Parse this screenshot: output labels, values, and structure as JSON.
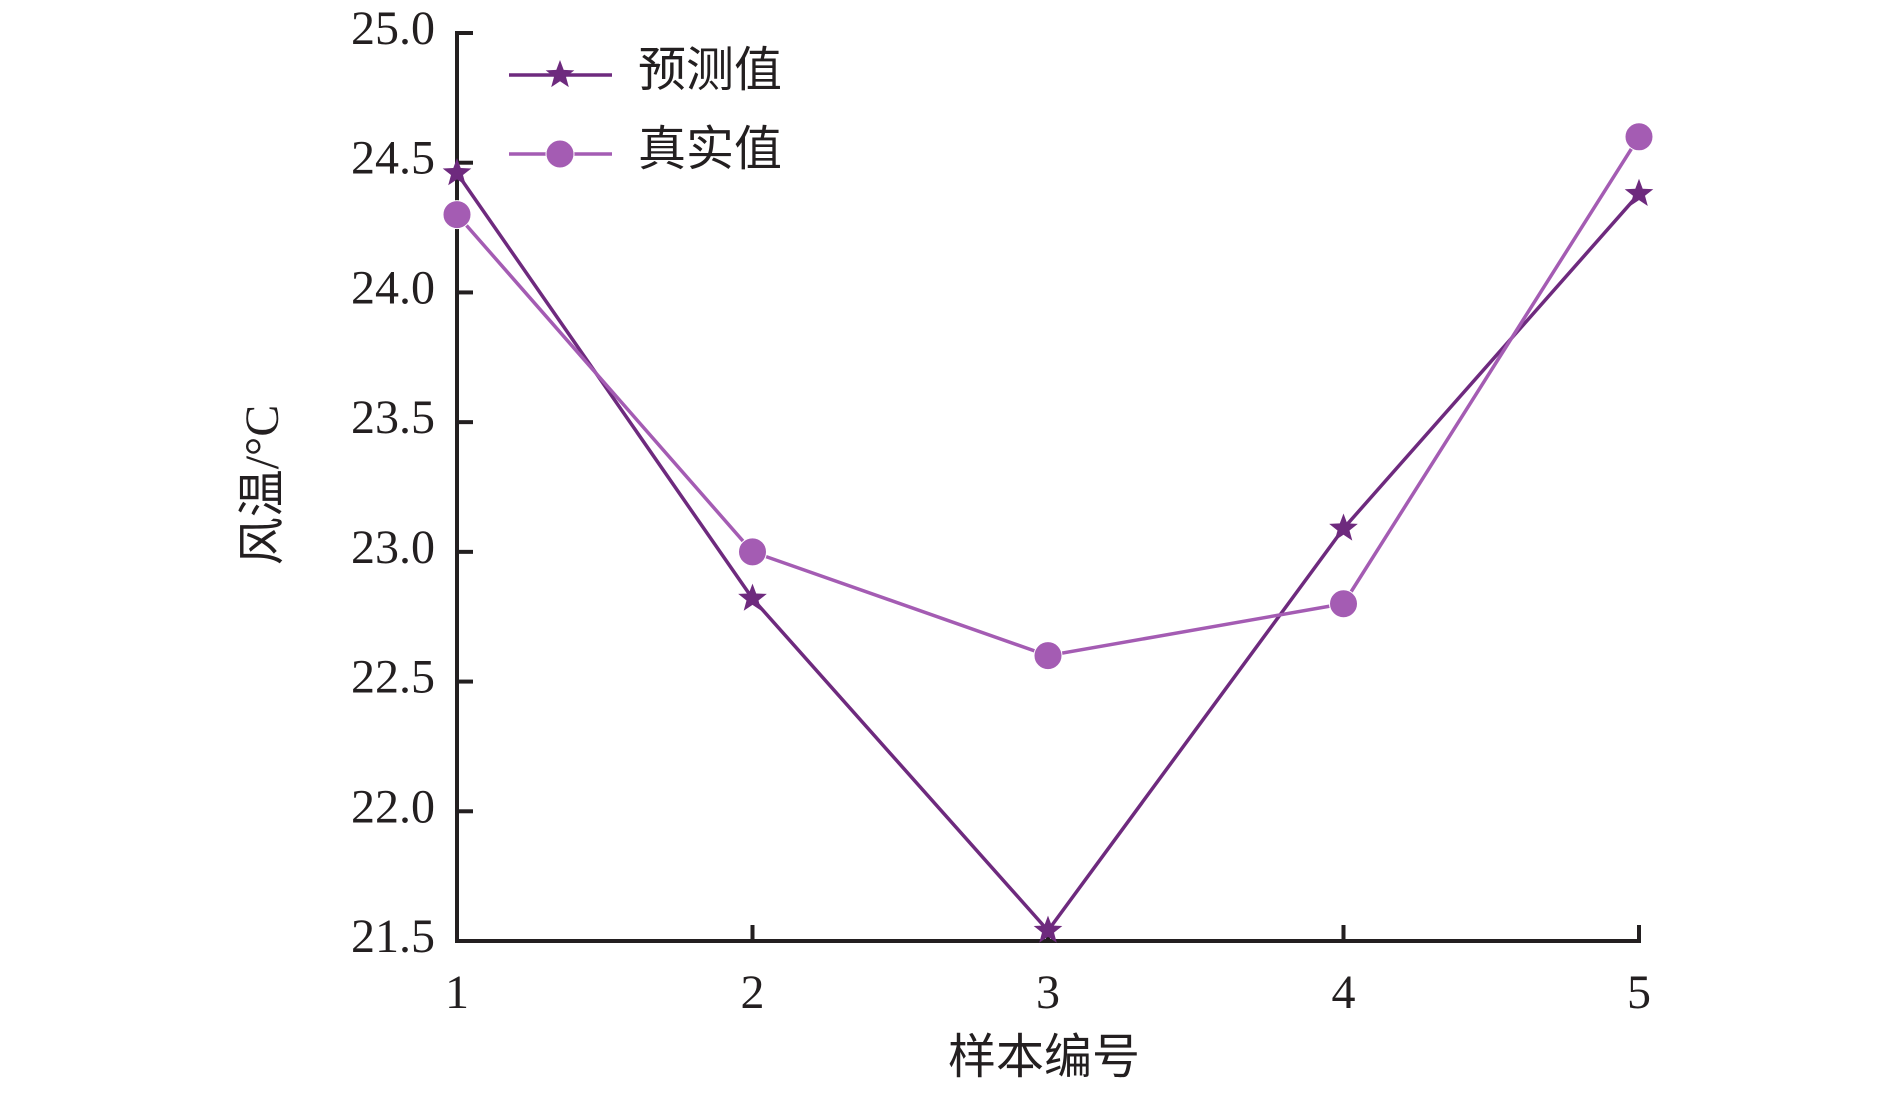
{
  "chart_data": {
    "type": "line",
    "x_label": "样本编号",
    "y_label": "风温/°C",
    "x": [
      1,
      2,
      3,
      4,
      5
    ],
    "xlim": [
      1,
      5
    ],
    "xticks": [
      1,
      2,
      3,
      4,
      5
    ],
    "ylim": [
      21.5,
      25.0
    ],
    "yticks": [
      21.5,
      {
        "value": 22,
        "label": "22.0"
      },
      22.5,
      {
        "value": 23,
        "label": "23.0"
      },
      23.5,
      {
        "value": 24,
        "label": "24.0"
      },
      24.5,
      {
        "value": 25,
        "label": "25.0"
      }
    ],
    "grid": false,
    "legend": "upper left",
    "series": [
      {
        "name": "预测值",
        "color": "#6e2a7e",
        "marker": "star",
        "values": [
          24.46,
          22.82,
          21.54,
          23.09,
          24.38
        ]
      },
      {
        "name": "真实值",
        "color": "#a45cb3",
        "marker": "circle",
        "values": [
          24.3,
          23.0,
          22.6,
          22.8,
          24.6
        ]
      }
    ]
  }
}
